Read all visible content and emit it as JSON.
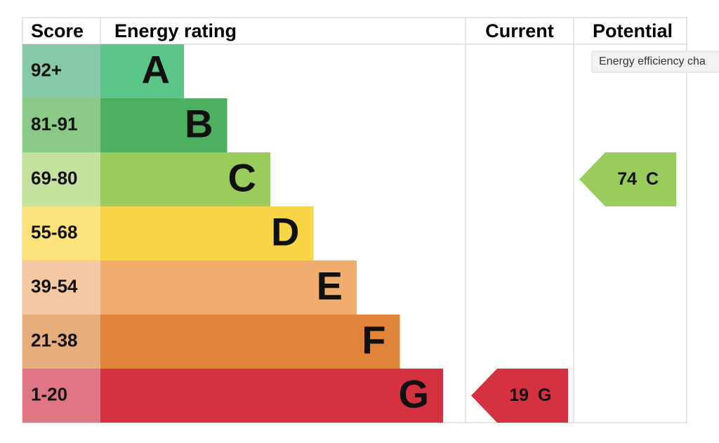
{
  "header": {
    "score": "Score",
    "energy_rating": "Energy rating",
    "current": "Current",
    "potential": "Potential"
  },
  "rows": [
    {
      "score": "92+",
      "letter": "A",
      "color": "#5bc687",
      "score_color": "#86c9a6"
    },
    {
      "score": "81-91",
      "letter": "B",
      "color": "#4db060",
      "score_color": "#8bc988"
    },
    {
      "score": "69-80",
      "letter": "C",
      "color": "#9acc5b",
      "score_color": "#c4e19d"
    },
    {
      "score": "55-68",
      "letter": "D",
      "color": "#f7d547",
      "score_color": "#fbe27b"
    },
    {
      "score": "39-54",
      "letter": "E",
      "color": "#f0ad6e",
      "score_color": "#f4c8a2"
    },
    {
      "score": "21-38",
      "letter": "F",
      "color": "#e08439",
      "score_color": "#e7ae7d"
    },
    {
      "score": "1-20",
      "letter": "G",
      "color": "#d63140",
      "score_color": "#e07586"
    }
  ],
  "current": {
    "value": 19,
    "letter": "G"
  },
  "potential": {
    "value": 74,
    "letter": "C"
  },
  "tooltip": "Energy efficiency cha"
}
